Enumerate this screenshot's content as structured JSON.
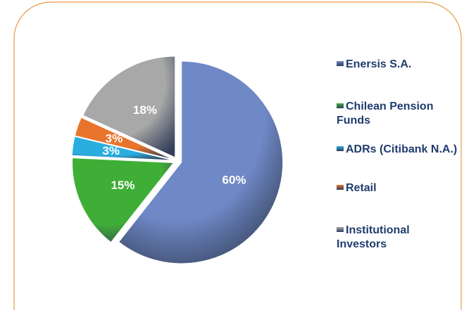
{
  "chart_data": {
    "type": "pie",
    "categories": [
      "Enersis S.A.",
      "Chilean Pension Funds",
      "ADRs (Citibank N.A.)",
      "Retail",
      "Institutional Investors"
    ],
    "values": [
      60,
      15,
      3,
      3,
      18
    ],
    "value_labels": [
      "60%",
      "15%",
      "3%",
      "3%",
      "18%"
    ],
    "colors": [
      "#6f88c6",
      "#3fae36",
      "#2aaee0",
      "#e8742c",
      "#a8a8a8"
    ]
  }
}
